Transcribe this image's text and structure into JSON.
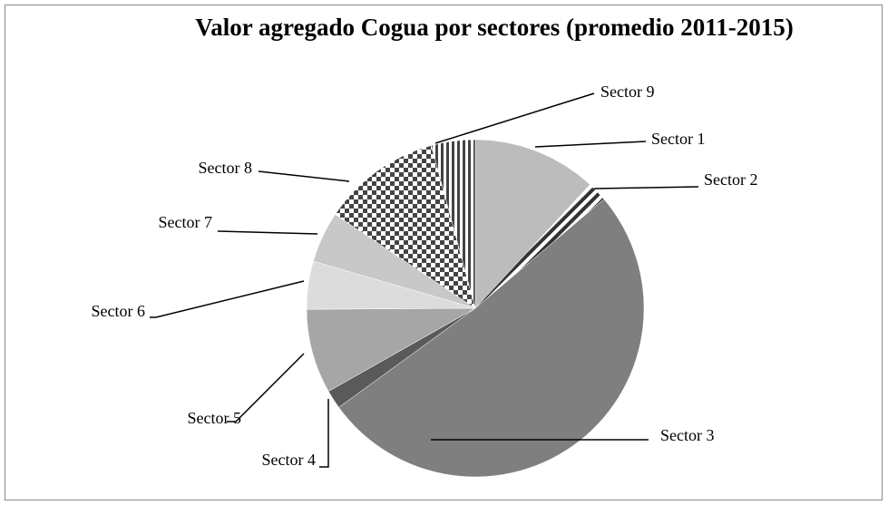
{
  "chart_data": {
    "type": "pie",
    "title": "Valor agregado Cogua por sectores (promedio 2011-2015)",
    "categories": [
      "Sector 1",
      "Sector 2",
      "Sector 3",
      "Sector 4",
      "Sector 5",
      "Sector 6",
      "Sector 7",
      "Sector 8",
      "Sector 9"
    ],
    "values": [
      11.9,
      1.9,
      51.2,
      1.8,
      8.1,
      4.6,
      4.9,
      11.4,
      4.2
    ],
    "colors": [
      "#bcbcbc",
      "#ffffff",
      "#7f7f7f",
      "#5a5a5a",
      "#a6a6a6",
      "#dcdcdc",
      "#c8c8c8",
      "#ffffff",
      "#ffffff"
    ],
    "patterns": [
      "none",
      "diagonal",
      "none",
      "none",
      "none",
      "none",
      "none",
      "checker",
      "vertical"
    ]
  }
}
